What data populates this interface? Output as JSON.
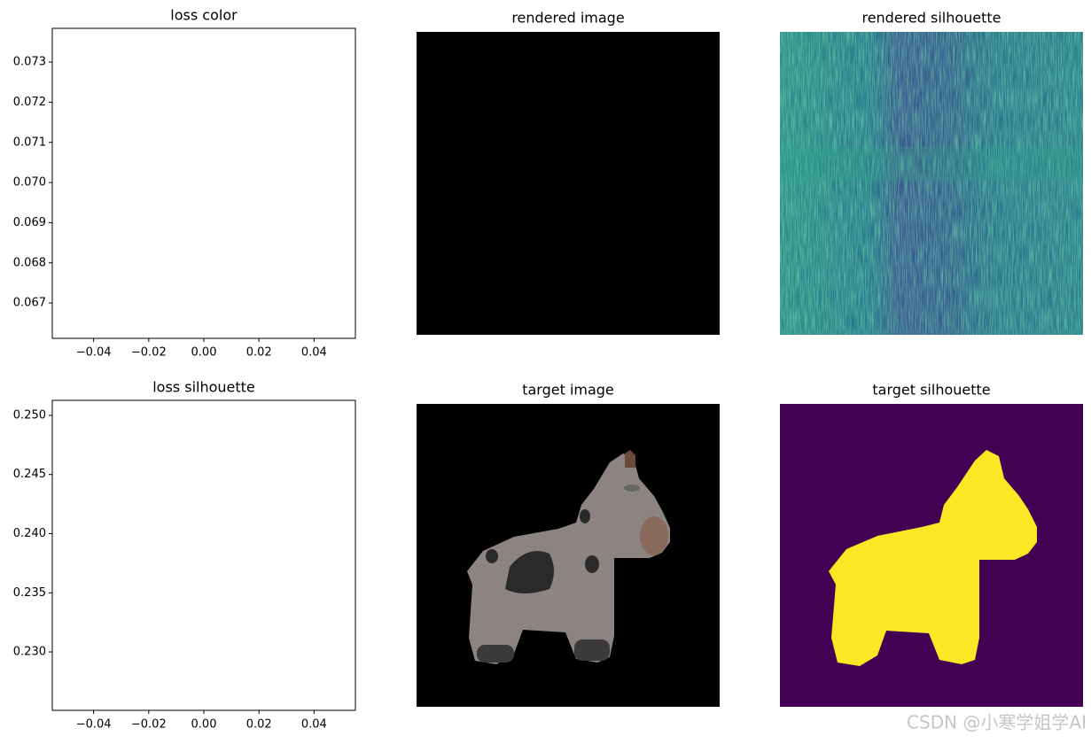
{
  "chart_data": [
    {
      "type": "line",
      "title": "loss color",
      "xlim": [
        -0.055,
        0.055
      ],
      "xticks": [
        {
          "value": -0.04,
          "label": "−0.04"
        },
        {
          "value": -0.02,
          "label": "−0.02"
        },
        {
          "value": 0,
          "label": "0.00"
        },
        0.02,
        0.04
      ],
      "ylim": [
        0.06612,
        0.07384
      ],
      "yticks": [
        0.067,
        0.068,
        0.069,
        {
          "value": 0.07,
          "label": "0.070"
        },
        0.071,
        0.072,
        0.073
      ]
    },
    {
      "type": "image",
      "title": "rendered image"
    },
    {
      "type": "image",
      "title": "rendered silhouette"
    },
    {
      "type": "line",
      "title": "loss silhouette",
      "xlim": [
        -0.055,
        0.055
      ],
      "xticks": [
        {
          "value": -0.04,
          "label": "−0.04"
        },
        {
          "value": -0.02,
          "label": "−0.02"
        },
        {
          "value": 0,
          "label": "0.00"
        },
        0.02,
        0.04
      ],
      "ylim": [
        0.22506,
        0.25127
      ],
      "yticks": [
        {
          "value": 0.23,
          "label": "0.230"
        },
        0.235,
        {
          "value": 0.24,
          "label": "0.240"
        },
        0.245,
        {
          "value": 0.25,
          "label": "0.250"
        }
      ]
    },
    {
      "type": "image",
      "title": "target image"
    },
    {
      "type": "image",
      "title": "target silhouette"
    }
  ],
  "watermark": "CSDN @小寒学姐学AI"
}
